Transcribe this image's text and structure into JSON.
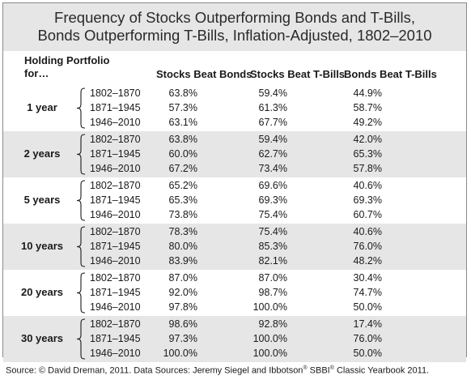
{
  "title": {
    "line1": "Frequency of Stocks Outperforming Bonds and T-Bills,",
    "line2": "Bonds Outperforming T-Bills, Inflation-Adjusted, 1802–2010"
  },
  "header": {
    "holding_line1": "Holding Portfolio",
    "holding_line2": "for…",
    "col1": "Stocks Beat Bonds",
    "col2": "Stocks Beat T-Bills",
    "col3": "Bonds Beat T-Bills"
  },
  "groups": [
    {
      "label": "1 year",
      "rows": [
        {
          "period": "1802–1870",
          "stocks_bonds": "63.8%",
          "stocks_tbills": "59.4%",
          "bonds_tbills": "44.9%"
        },
        {
          "period": "1871–1945",
          "stocks_bonds": "57.3%",
          "stocks_tbills": "61.3%",
          "bonds_tbills": "58.7%"
        },
        {
          "period": "1946–2010",
          "stocks_bonds": "63.1%",
          "stocks_tbills": "67.7%",
          "bonds_tbills": "49.2%"
        }
      ]
    },
    {
      "label": "2 years",
      "rows": [
        {
          "period": "1802–1870",
          "stocks_bonds": "63.8%",
          "stocks_tbills": "59.4%",
          "bonds_tbills": "42.0%"
        },
        {
          "period": "1871–1945",
          "stocks_bonds": "60.0%",
          "stocks_tbills": "62.7%",
          "bonds_tbills": "65.3%"
        },
        {
          "period": "1946–2010",
          "stocks_bonds": "67.2%",
          "stocks_tbills": "73.4%",
          "bonds_tbills": "57.8%"
        }
      ]
    },
    {
      "label": "5 years",
      "rows": [
        {
          "period": "1802–1870",
          "stocks_bonds": "65.2%",
          "stocks_tbills": "69.6%",
          "bonds_tbills": "40.6%"
        },
        {
          "period": "1871–1945",
          "stocks_bonds": "65.3%",
          "stocks_tbills": "69.3%",
          "bonds_tbills": "69.3%"
        },
        {
          "period": "1946–2010",
          "stocks_bonds": "73.8%",
          "stocks_tbills": "75.4%",
          "bonds_tbills": "60.7%"
        }
      ]
    },
    {
      "label": "10 years",
      "rows": [
        {
          "period": "1802–1870",
          "stocks_bonds": "78.3%",
          "stocks_tbills": "75.4%",
          "bonds_tbills": "40.6%"
        },
        {
          "period": "1871–1945",
          "stocks_bonds": "80.0%",
          "stocks_tbills": "85.3%",
          "bonds_tbills": "76.0%"
        },
        {
          "period": "1946–2010",
          "stocks_bonds": "83.9%",
          "stocks_tbills": "82.1%",
          "bonds_tbills": "48.2%"
        }
      ]
    },
    {
      "label": "20 years",
      "rows": [
        {
          "period": "1802–1870",
          "stocks_bonds": "87.0%",
          "stocks_tbills": "87.0%",
          "bonds_tbills": "30.4%"
        },
        {
          "period": "1871–1945",
          "stocks_bonds": "92.0%",
          "stocks_tbills": "98.7%",
          "bonds_tbills": "74.7%"
        },
        {
          "period": "1946–2010",
          "stocks_bonds": "97.8%",
          "stocks_tbills": "100.0%",
          "bonds_tbills": "50.0%"
        }
      ]
    },
    {
      "label": "30 years",
      "rows": [
        {
          "period": "1802–1870",
          "stocks_bonds": "98.6%",
          "stocks_tbills": "92.8%",
          "bonds_tbills": "17.4%"
        },
        {
          "period": "1871–1945",
          "stocks_bonds": "97.3%",
          "stocks_tbills": "100.0%",
          "bonds_tbills": "76.0%"
        },
        {
          "period": "1946–2010",
          "stocks_bonds": "100.0%",
          "stocks_tbills": "100.0%",
          "bonds_tbills": "50.0%"
        }
      ]
    }
  ],
  "source": {
    "part1": "Source: © David Dreman, 2011. Data Sources: Jeremy Siegel and Ibbotson",
    "reg1": "®",
    "part2": " SBBI",
    "reg2": "®",
    "part3": " Classic Yearbook 2011."
  }
}
